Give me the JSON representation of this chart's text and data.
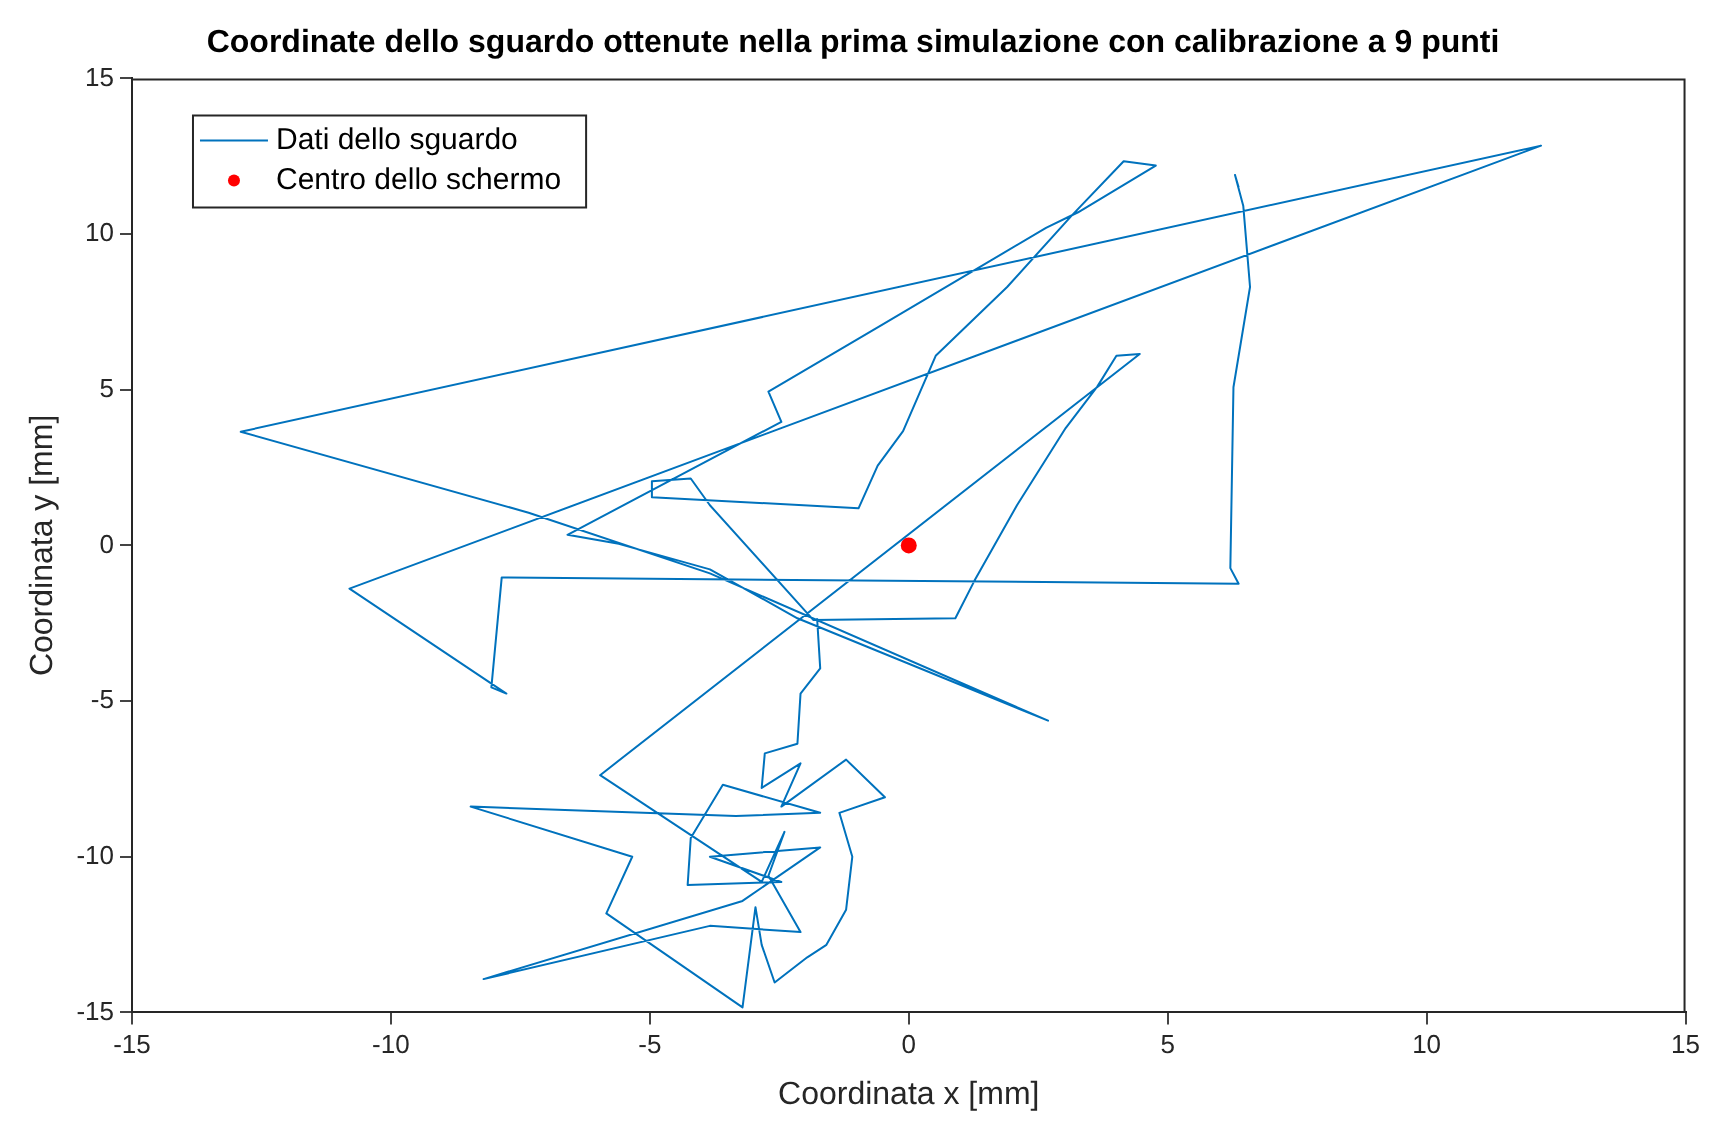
{
  "chart_data": {
    "type": "line",
    "title": "Coordinate dello sguardo ottenute nella prima simulazione con calibrazione a 9 punti",
    "xlabel": "Coordinata x [mm]",
    "ylabel": "Coordinata y [mm]",
    "xlim": [
      -15,
      15
    ],
    "xticks": [
      -15,
      -10,
      -5,
      0,
      5,
      10,
      15
    ],
    "ylim": [
      -15,
      15
    ],
    "yticks": [
      -15,
      -10,
      -5,
      0,
      5,
      10,
      15
    ],
    "grid": false,
    "legend": "top left",
    "series": [
      {
        "name": "Dati dello sguardo",
        "type": "line",
        "color": "#0072bd",
        "marker": "none",
        "x": [
          -1.77,
          -1.71,
          -2.09,
          -2.15,
          -2.78,
          -2.84,
          -2.09,
          -2.46,
          -1.21,
          -0.46,
          -1.34,
          -1.09,
          -1.21,
          -1.59,
          -1.96,
          -2.59,
          -2.84,
          -2.96,
          -3.21,
          -5.84,
          -5.34,
          -8.46,
          -3.34,
          -1.71,
          -3.59,
          -4.21,
          -4.27,
          -2.46,
          -3.84,
          -1.71,
          -3.21,
          -8.21,
          -3.84,
          -2.09,
          -2.71,
          -2.4,
          -2.84,
          -5.96,
          4.46,
          4.01,
          3.64,
          3.03,
          2.09,
          1.27,
          0.9,
          -1.84,
          -3.84,
          -4.21,
          -4.96,
          -4.96,
          -0.97,
          -0.6,
          -0.11,
          0.52,
          1.9,
          3.15,
          4.15,
          4.77,
          3.27,
          2.65,
          -0.6,
          -2.71,
          -2.46,
          -6.59,
          -5.6,
          -3.84,
          -2.15,
          2.69,
          -3.84,
          -7.34,
          -12.9,
          12.21,
          -10.8,
          -7.77,
          -8.06,
          -7.86,
          6.37,
          6.21,
          6.27,
          6.59,
          6.46,
          6.3,
          6.37
        ],
        "values": [
          -2.34,
          -3.95,
          -4.76,
          -6.37,
          -6.68,
          -7.79,
          -7.0,
          -8.39,
          -6.88,
          -8.09,
          -8.59,
          -10.0,
          -11.7,
          -12.83,
          -13.23,
          -14.04,
          -12.83,
          -11.62,
          -14.84,
          -11.82,
          -10.0,
          -8.39,
          -8.69,
          -8.59,
          -7.69,
          -9.4,
          -10.91,
          -10.81,
          -10.0,
          -9.7,
          -11.42,
          -13.93,
          -12.22,
          -12.42,
          -10.61,
          -9.2,
          -10.81,
          -7.38,
          6.15,
          6.09,
          5.1,
          3.77,
          1.29,
          -1.13,
          -2.34,
          -2.4,
          1.29,
          2.15,
          2.06,
          1.55,
          1.19,
          2.56,
          3.67,
          6.09,
          8.3,
          10.6,
          12.34,
          12.2,
          10.7,
          10.2,
          7.0,
          4.94,
          3.97,
          0.34,
          0.05,
          -0.77,
          -2.34,
          -5.63,
          -0.9,
          1.05,
          3.65,
          12.84,
          -1.39,
          -4.76,
          -4.56,
          -1.03,
          -1.23,
          -0.73,
          5.08,
          8.3,
          10.9,
          11.9,
          11.5
        ]
      },
      {
        "name": "Centro dello schermo",
        "type": "scatter",
        "color": "#ff0000",
        "marker": "circle",
        "x": [
          0
        ],
        "values": [
          0
        ]
      }
    ]
  }
}
